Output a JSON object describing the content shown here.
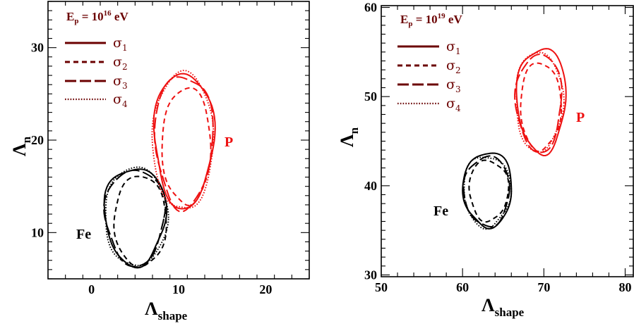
{
  "colors": {
    "legend": "#6b0000",
    "Fe": "#000000",
    "P": "#ee1111"
  },
  "chart_data": [
    {
      "type": "contour",
      "energy_label": {
        "main": "E",
        "sub": "p",
        "mid": " = 10",
        "sup": "16",
        "unit": " eV"
      },
      "xlabel": {
        "main": "Λ",
        "sub": "shape"
      },
      "ylabel": {
        "main": "Λ",
        "sub": "n"
      },
      "xlim": [
        -5,
        25
      ],
      "ylim": [
        5,
        35
      ],
      "xticks": [
        0,
        10,
        20
      ],
      "yticks": [
        10,
        20,
        30
      ],
      "legend_placement": "top-left",
      "legend": [
        {
          "name": "σ",
          "sub": "1",
          "style": "solid"
        },
        {
          "name": "σ",
          "sub": "2",
          "style": "dashed"
        },
        {
          "name": "σ",
          "sub": "3",
          "style": "longdash"
        },
        {
          "name": "σ",
          "sub": "4",
          "style": "dotted"
        }
      ],
      "groups": [
        {
          "label": "Fe",
          "color": "#000000",
          "contours": [
            {
              "style": "solid",
              "cx": 5.0,
              "cy": 11.7,
              "rx": 3.5,
              "ry": 5.3
            },
            {
              "style": "dashed",
              "cx": 5.6,
              "cy": 11.1,
              "rx": 3.0,
              "ry": 4.9
            },
            {
              "style": "longdash",
              "cx": 5.0,
              "cy": 11.6,
              "rx": 3.4,
              "ry": 5.2
            },
            {
              "style": "dotted",
              "cx": 5.1,
              "cy": 11.6,
              "rx": 3.6,
              "ry": 5.3
            }
          ]
        },
        {
          "label": "P",
          "color": "#ee1111",
          "contours": [
            {
              "style": "solid",
              "cx": 10.6,
              "cy": 19.9,
              "rx": 3.4,
              "ry": 7.3
            },
            {
              "style": "dashed",
              "cx": 10.9,
              "cy": 19.2,
              "rx": 2.8,
              "ry": 6.3
            },
            {
              "style": "longdash",
              "cx": 10.6,
              "cy": 19.8,
              "rx": 3.3,
              "ry": 7.2
            },
            {
              "style": "dotted",
              "cx": 10.5,
              "cy": 19.7,
              "rx": 3.5,
              "ry": 7.4
            }
          ]
        }
      ]
    },
    {
      "type": "contour",
      "energy_label": {
        "main": "E",
        "sub": "p",
        "mid": " = 10",
        "sup": "19",
        "unit": " eV"
      },
      "xlabel": {
        "main": "Λ",
        "sub": "shape"
      },
      "ylabel": {
        "main": "Λ",
        "sub": "n"
      },
      "xlim": [
        50,
        81
      ],
      "ylim": [
        29.8,
        60.2
      ],
      "xticks": [
        50,
        60,
        70,
        80
      ],
      "yticks": [
        30,
        40,
        50,
        60
      ],
      "legend_placement": "top-left",
      "legend": [
        {
          "name": "σ",
          "sub": "1",
          "style": "solid"
        },
        {
          "name": "σ",
          "sub": "2",
          "style": "dashed"
        },
        {
          "name": "σ",
          "sub": "3",
          "style": "longdash"
        },
        {
          "name": "σ",
          "sub": "4",
          "style": "dotted"
        }
      ],
      "groups": [
        {
          "label": "Fe",
          "color": "#000000",
          "contours": [
            {
              "style": "solid",
              "cx": 63.1,
              "cy": 39.5,
              "rx": 3.0,
              "ry": 4.2
            },
            {
              "style": "dashed",
              "cx": 63.2,
              "cy": 39.4,
              "rx": 2.4,
              "ry": 3.4
            },
            {
              "style": "longdash",
              "cx": 63.0,
              "cy": 39.3,
              "rx": 2.8,
              "ry": 3.9
            },
            {
              "style": "dotted",
              "cx": 63.0,
              "cy": 39.3,
              "rx": 2.9,
              "ry": 4.0
            }
          ]
        },
        {
          "label": "P",
          "color": "#ee1111",
          "contours": [
            {
              "style": "solid",
              "cx": 69.7,
              "cy": 49.5,
              "rx": 3.0,
              "ry": 5.9
            },
            {
              "style": "dashed",
              "cx": 69.6,
              "cy": 48.8,
              "rx": 2.5,
              "ry": 4.9
            },
            {
              "style": "longdash",
              "cx": 69.4,
              "cy": 49.2,
              "rx": 2.8,
              "ry": 5.5
            },
            {
              "style": "dotted",
              "cx": 69.4,
              "cy": 49.3,
              "rx": 2.9,
              "ry": 5.6
            }
          ]
        }
      ]
    }
  ]
}
